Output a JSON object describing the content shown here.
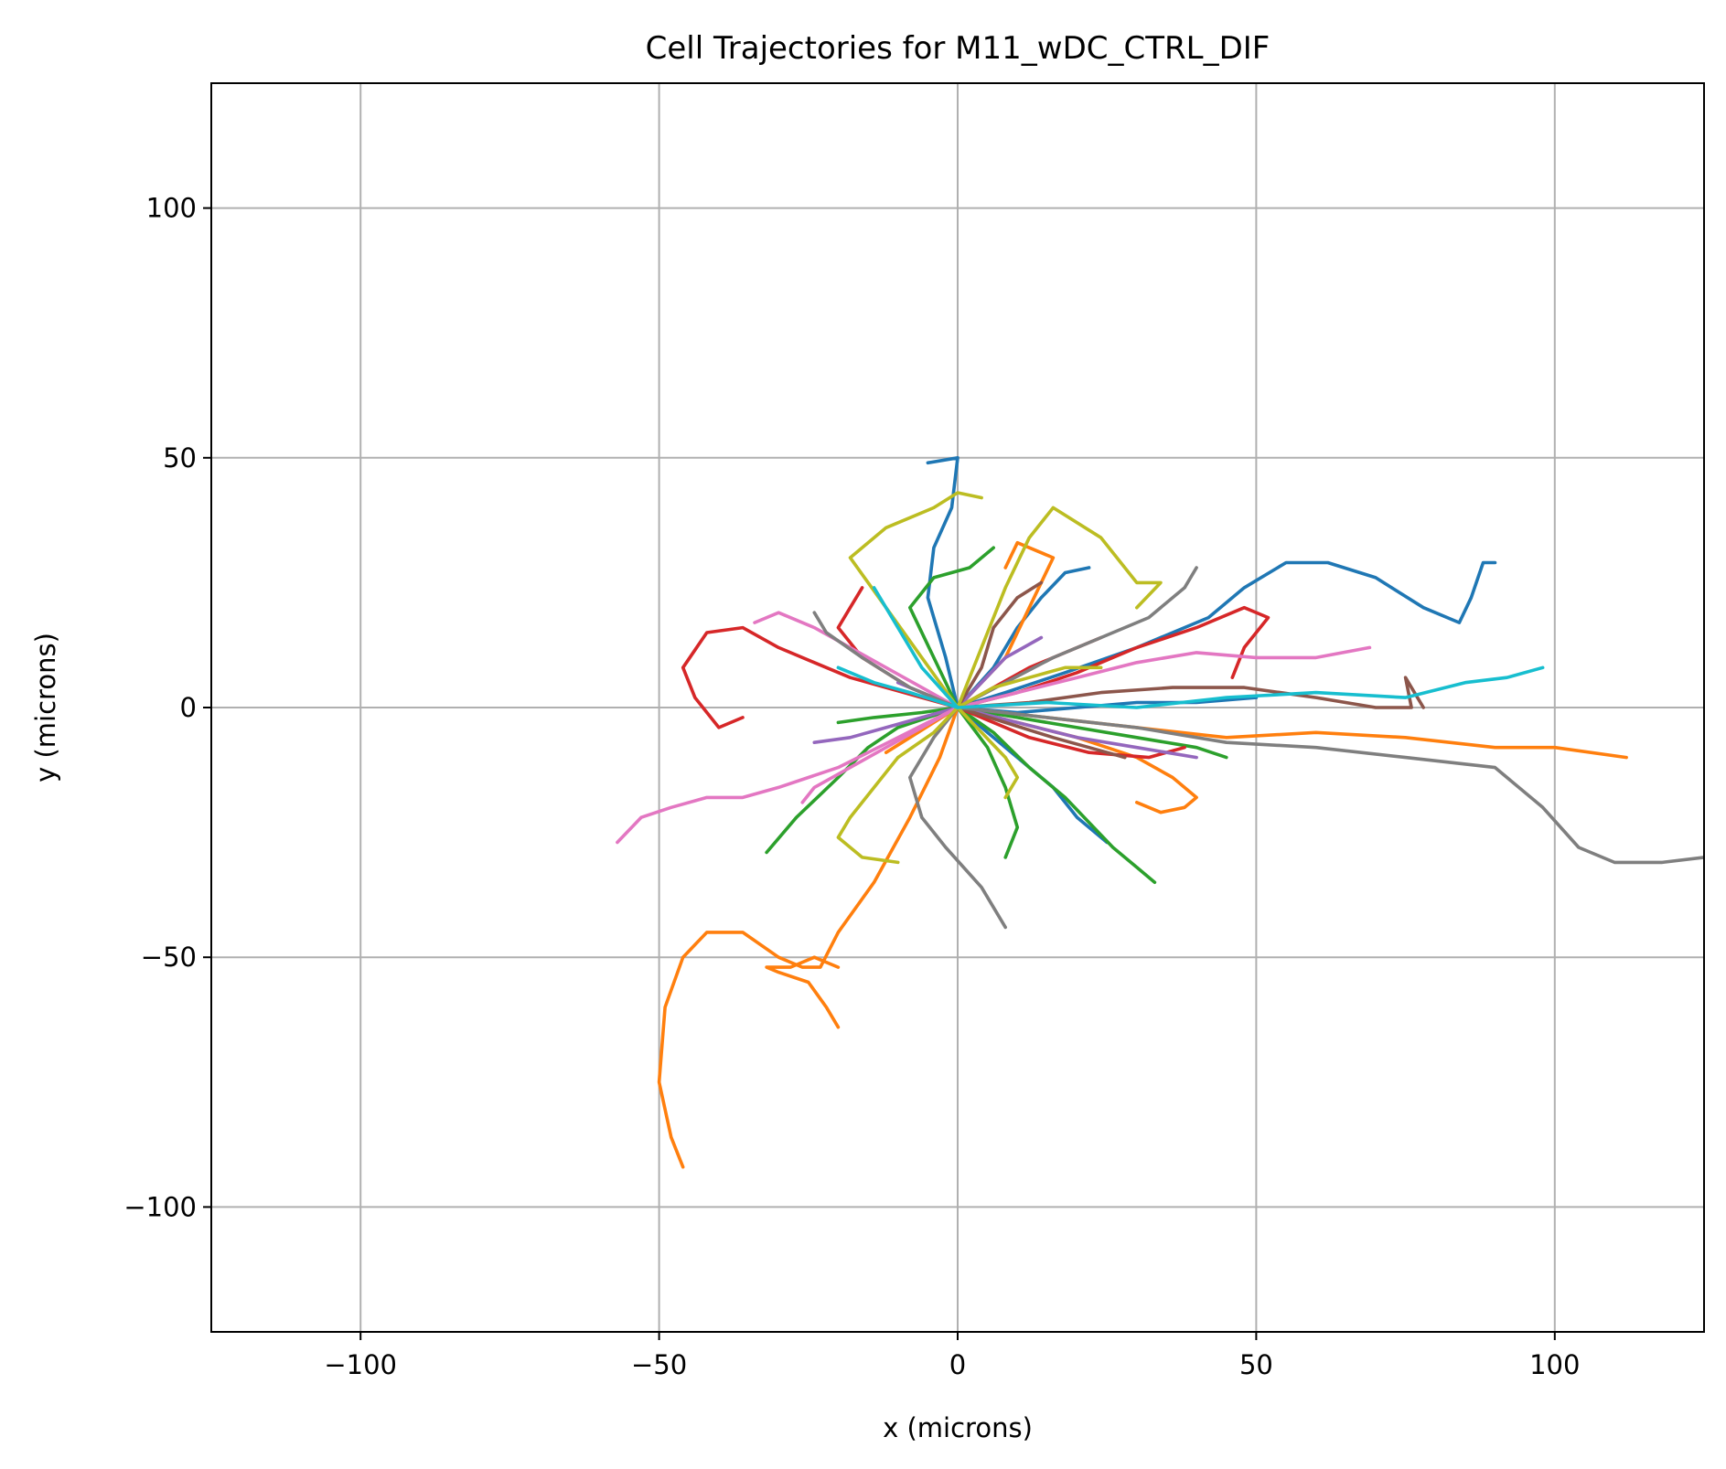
{
  "chart_data": {
    "type": "line",
    "title": "Cell Trajectories for M11_wDC_CTRL_DIF",
    "xlabel": "x (microns)",
    "ylabel": "y (microns)",
    "xlim": [
      -125,
      125
    ],
    "ylim": [
      -125,
      125
    ],
    "grid": true,
    "xticks": [
      {
        "value": -100,
        "label": "−100"
      },
      {
        "value": -50,
        "label": "−50"
      },
      {
        "value": 0,
        "label": "0"
      },
      {
        "value": 50,
        "label": "50"
      },
      {
        "value": 100,
        "label": "100"
      }
    ],
    "yticks": [
      {
        "value": 100,
        "label": "100"
      },
      {
        "value": 50,
        "label": "50"
      },
      {
        "value": 0,
        "label": "0"
      },
      {
        "value": -50,
        "label": "−50"
      },
      {
        "value": -100,
        "label": "−100"
      }
    ],
    "series": [
      {
        "color": "#1f77b4",
        "x": [
          0,
          2,
          5,
          10,
          16,
          20,
          25
        ],
        "y": [
          0,
          -2,
          -5,
          -10,
          -16,
          -22,
          -27
        ]
      },
      {
        "color": "#1f77b4",
        "x": [
          0,
          8,
          18,
          30,
          42,
          48,
          55,
          62,
          70,
          78,
          84,
          86,
          88,
          90
        ],
        "y": [
          0,
          3,
          7,
          12,
          18,
          24,
          29,
          29,
          26,
          20,
          17,
          22,
          29,
          29
        ]
      },
      {
        "color": "#1f77b4",
        "x": [
          0,
          -2,
          -5,
          -4,
          -1,
          0,
          -5
        ],
        "y": [
          0,
          10,
          22,
          32,
          40,
          50,
          49
        ]
      },
      {
        "color": "#1f77b4",
        "x": [
          0,
          6,
          10,
          14,
          18,
          22
        ],
        "y": [
          0,
          8,
          16,
          22,
          27,
          28
        ]
      },
      {
        "color": "#1f77b4",
        "x": [
          0,
          10,
          20,
          30,
          40,
          50
        ],
        "y": [
          0,
          -1,
          0,
          1,
          1,
          2
        ]
      },
      {
        "color": "#ff7f0e",
        "x": [
          0,
          -3,
          -8,
          -14,
          -20,
          -23,
          -26,
          -30,
          -36,
          -42,
          -46,
          -49,
          -50,
          -48,
          -46
        ],
        "y": [
          0,
          -10,
          -22,
          -35,
          -45,
          -52,
          -52,
          -50,
          -45,
          -45,
          -50,
          -60,
          -75,
          -86,
          -92
        ]
      },
      {
        "color": "#ff7f0e",
        "x": [
          -20,
          -24,
          -28,
          -32,
          -30,
          -25,
          -22,
          -20
        ],
        "y": [
          -52,
          -50,
          -52,
          -52,
          -53,
          -55,
          -60,
          -64
        ]
      },
      {
        "color": "#ff7f0e",
        "x": [
          0,
          15,
          30,
          45,
          60,
          75,
          90,
          100,
          112
        ],
        "y": [
          0,
          -2,
          -4,
          -6,
          -5,
          -6,
          -8,
          -8,
          -10
        ]
      },
      {
        "color": "#ff7f0e",
        "x": [
          0,
          8,
          12,
          16,
          10,
          8
        ],
        "y": [
          0,
          10,
          20,
          30,
          33,
          28
        ]
      },
      {
        "color": "#ff7f0e",
        "x": [
          0,
          10,
          20,
          30,
          36,
          40,
          38,
          34,
          30
        ],
        "y": [
          0,
          -3,
          -6,
          -10,
          -14,
          -18,
          -20,
          -21,
          -19
        ]
      },
      {
        "color": "#ff7f0e",
        "x": [
          0,
          -4,
          -8,
          -12
        ],
        "y": [
          0,
          -3,
          -6,
          -9
        ]
      },
      {
        "color": "#2ca02c",
        "x": [
          0,
          -5,
          -10,
          -15,
          -20,
          -27,
          -32
        ],
        "y": [
          0,
          -2,
          -4,
          -8,
          -14,
          -22,
          -29
        ]
      },
      {
        "color": "#2ca02c",
        "x": [
          0,
          6,
          12,
          18,
          22,
          26,
          30,
          33
        ],
        "y": [
          0,
          -5,
          -12,
          -18,
          -23,
          -28,
          -32,
          -35
        ]
      },
      {
        "color": "#2ca02c",
        "x": [
          0,
          -4,
          -8,
          -4,
          2,
          6
        ],
        "y": [
          0,
          10,
          20,
          26,
          28,
          32
        ]
      },
      {
        "color": "#2ca02c",
        "x": [
          0,
          5,
          8,
          10,
          8
        ],
        "y": [
          0,
          -8,
          -16,
          -24,
          -30
        ]
      },
      {
        "color": "#2ca02c",
        "x": [
          0,
          10,
          20,
          30,
          40,
          45
        ],
        "y": [
          0,
          -2,
          -4,
          -6,
          -8,
          -10
        ]
      },
      {
        "color": "#2ca02c",
        "x": [
          0,
          -6,
          -14,
          -20
        ],
        "y": [
          0,
          -1,
          -2,
          -3
        ]
      },
      {
        "color": "#d62728",
        "x": [
          0,
          -6,
          -12,
          -18,
          -24,
          -30,
          -36,
          -42,
          -46,
          -44,
          -40,
          -36
        ],
        "y": [
          0,
          2,
          4,
          6,
          9,
          12,
          16,
          15,
          8,
          2,
          -4,
          -2
        ]
      },
      {
        "color": "#d62728",
        "x": [
          0,
          -8,
          -16,
          -20,
          -18,
          -16
        ],
        "y": [
          0,
          4,
          10,
          16,
          20,
          24
        ]
      },
      {
        "color": "#d62728",
        "x": [
          0,
          10,
          20,
          30,
          40,
          48,
          52,
          48,
          46
        ],
        "y": [
          0,
          3,
          7,
          12,
          16,
          20,
          18,
          12,
          6
        ]
      },
      {
        "color": "#d62728",
        "x": [
          0,
          12,
          22,
          32,
          38
        ],
        "y": [
          0,
          -6,
          -9,
          -10,
          -8
        ]
      },
      {
        "color": "#d62728",
        "x": [
          0,
          6,
          12,
          18,
          24
        ],
        "y": [
          0,
          4,
          8,
          11,
          14
        ]
      },
      {
        "color": "#9467bd",
        "x": [
          0,
          -6,
          -12,
          -18,
          -24
        ],
        "y": [
          0,
          -2,
          -4,
          -6,
          -7
        ]
      },
      {
        "color": "#9467bd",
        "x": [
          0,
          10,
          20,
          30,
          40
        ],
        "y": [
          0,
          -3,
          -6,
          -8,
          -10
        ]
      },
      {
        "color": "#9467bd",
        "x": [
          0,
          4,
          8,
          14
        ],
        "y": [
          0,
          5,
          10,
          14
        ]
      },
      {
        "color": "#9467bd",
        "x": [
          0,
          -4,
          -10
        ],
        "y": [
          0,
          2,
          5
        ]
      },
      {
        "color": "#8c564b",
        "x": [
          0,
          12,
          24,
          36,
          48,
          60,
          70,
          76,
          75,
          78
        ],
        "y": [
          0,
          1,
          3,
          4,
          4,
          2,
          0,
          0,
          6,
          0
        ]
      },
      {
        "color": "#8c564b",
        "x": [
          0,
          4,
          6,
          10,
          14
        ],
        "y": [
          0,
          8,
          16,
          22,
          25
        ]
      },
      {
        "color": "#8c564b",
        "x": [
          0,
          8,
          16,
          22,
          28
        ],
        "y": [
          0,
          -3,
          -6,
          -8,
          -10
        ]
      },
      {
        "color": "#e377c2",
        "x": [
          0,
          -5,
          -10,
          -15,
          -20,
          -25,
          -30,
          -36,
          -42,
          -48,
          -53,
          -57
        ],
        "y": [
          0,
          -3,
          -6,
          -9,
          -12,
          -14,
          -16,
          -18,
          -18,
          -20,
          -22,
          -27
        ]
      },
      {
        "color": "#e377c2",
        "x": [
          0,
          -6,
          -12,
          -18,
          -24,
          -30,
          -34
        ],
        "y": [
          0,
          4,
          8,
          12,
          16,
          19,
          17
        ]
      },
      {
        "color": "#e377c2",
        "x": [
          0,
          10,
          20,
          30,
          40,
          50,
          60,
          69
        ],
        "y": [
          0,
          3,
          6,
          9,
          11,
          10,
          10,
          12
        ]
      },
      {
        "color": "#e377c2",
        "x": [
          0,
          -6,
          -12,
          -18,
          -24,
          -26
        ],
        "y": [
          0,
          -4,
          -8,
          -12,
          -16,
          -19
        ]
      },
      {
        "color": "#7f7f7f",
        "x": [
          0,
          15,
          30,
          45,
          60,
          75,
          90,
          98,
          104,
          110,
          118,
          125
        ],
        "y": [
          0,
          -2,
          -4,
          -7,
          -8,
          -10,
          -12,
          -20,
          -28,
          -31,
          -31,
          -30
        ]
      },
      {
        "color": "#7f7f7f",
        "x": [
          0,
          -4,
          -8,
          -6,
          -2,
          4,
          8
        ],
        "y": [
          0,
          -6,
          -14,
          -22,
          -28,
          -36,
          -44
        ]
      },
      {
        "color": "#7f7f7f",
        "x": [
          0,
          8,
          16,
          24,
          32,
          38,
          40
        ],
        "y": [
          0,
          5,
          10,
          14,
          18,
          24,
          28
        ]
      },
      {
        "color": "#7f7f7f",
        "x": [
          0,
          -8,
          -16,
          -22,
          -24
        ],
        "y": [
          0,
          4,
          10,
          15,
          19
        ]
      },
      {
        "color": "#bcbd22",
        "x": [
          0,
          -4,
          -10,
          -14,
          -18,
          -20,
          -16,
          -10
        ],
        "y": [
          0,
          -5,
          -10,
          -16,
          -22,
          -26,
          -30,
          -31
        ]
      },
      {
        "color": "#bcbd22",
        "x": [
          0,
          4,
          8,
          12,
          16,
          24,
          30,
          34,
          30
        ],
        "y": [
          0,
          12,
          24,
          34,
          40,
          34,
          25,
          25,
          20
        ]
      },
      {
        "color": "#bcbd22",
        "x": [
          0,
          -6,
          -12,
          -18,
          -12,
          -4,
          0,
          4
        ],
        "y": [
          0,
          10,
          20,
          30,
          36,
          40,
          43,
          42
        ]
      },
      {
        "color": "#bcbd22",
        "x": [
          0,
          6,
          12,
          18,
          24
        ],
        "y": [
          0,
          4,
          6,
          8,
          8
        ]
      },
      {
        "color": "#bcbd22",
        "x": [
          0,
          4,
          8,
          10,
          8
        ],
        "y": [
          0,
          -5,
          -10,
          -14,
          -18
        ]
      },
      {
        "color": "#17becf",
        "x": [
          0,
          15,
          30,
          45,
          60,
          75,
          85,
          92,
          98
        ],
        "y": [
          0,
          1,
          0,
          2,
          3,
          2,
          5,
          6,
          8
        ]
      },
      {
        "color": "#17becf",
        "x": [
          0,
          -6,
          -10,
          -14
        ],
        "y": [
          0,
          8,
          16,
          24
        ]
      },
      {
        "color": "#17becf",
        "x": [
          0,
          -8,
          -14,
          -20
        ],
        "y": [
          0,
          3,
          5,
          8
        ]
      }
    ]
  }
}
